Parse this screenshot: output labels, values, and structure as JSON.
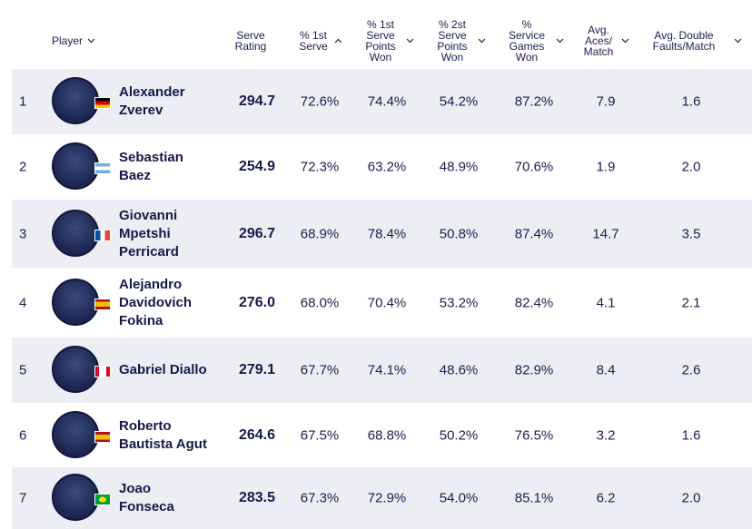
{
  "table": {
    "header": {
      "player": "Player",
      "columns": [
        [
          "Serve",
          "Rating"
        ],
        [
          "% 1st",
          "Serve"
        ],
        [
          "% 1st",
          "Serve",
          "Points",
          "Won"
        ],
        [
          "% 2st",
          "Serve",
          "Points",
          "Won"
        ],
        [
          "%",
          "Service",
          "Games",
          "Won"
        ],
        [
          "Avg.",
          "Aces/",
          "Match"
        ],
        [
          "Avg. Double",
          "Faults/Match"
        ]
      ]
    },
    "rows": [
      {
        "rank": "1",
        "name": "Alexander Zverev",
        "cells": [
          "294.7",
          "72.6%",
          "74.4%",
          "54.2%",
          "87.2%",
          "7.9",
          "1.6"
        ]
      },
      {
        "rank": "2",
        "name": "Sebastian Baez",
        "cells": [
          "254.9",
          "72.3%",
          "63.2%",
          "48.9%",
          "70.6%",
          "1.9",
          "2.0"
        ]
      },
      {
        "rank": "3",
        "name": "Giovanni Mpetshi Perricard",
        "cells": [
          "296.7",
          "68.9%",
          "78.4%",
          "50.8%",
          "87.4%",
          "14.7",
          "3.5"
        ]
      },
      {
        "rank": "4",
        "name": "Alejandro Davidovich Fokina",
        "cells": [
          "276.0",
          "68.0%",
          "70.4%",
          "53.2%",
          "82.4%",
          "4.1",
          "2.1"
        ]
      },
      {
        "rank": "5",
        "name": "Gabriel Diallo",
        "cells": [
          "279.1",
          "67.7%",
          "74.1%",
          "48.6%",
          "82.9%",
          "8.4",
          "2.6"
        ]
      },
      {
        "rank": "6",
        "name": "Roberto Bautista Agut",
        "cells": [
          "264.6",
          "67.5%",
          "68.8%",
          "50.2%",
          "76.5%",
          "3.2",
          "1.6"
        ]
      },
      {
        "rank": "7",
        "name": "Joao Fonseca",
        "cells": [
          "283.5",
          "67.3%",
          "72.9%",
          "54.0%",
          "85.1%",
          "6.2",
          "2.0"
        ]
      }
    ]
  }
}
